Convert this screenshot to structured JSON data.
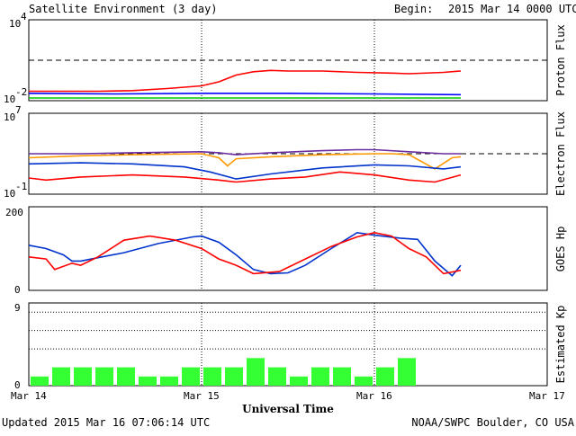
{
  "header": {
    "title": "Satellite Environment (3 day)",
    "begin_label": "Begin:",
    "begin_value": "2015 Mar 14 0000 UTC"
  },
  "footer": {
    "updated": "Updated 2015 Mar 16 07:06:14 UTC",
    "credit": "NOAA/SWPC Boulder, CO USA"
  },
  "xaxis": {
    "title": "Universal Time",
    "ticks": [
      "Mar 14",
      "Mar 15",
      "Mar 16",
      "Mar 17"
    ],
    "range_days": [
      0,
      3
    ]
  },
  "chart_data": [
    {
      "type": "line",
      "ylabel": "Proton Flux",
      "yscale": "log",
      "ylim_exp": [
        -2,
        4
      ],
      "yticks": [
        {
          "base": "10",
          "exp": "4"
        },
        {
          "base": "10",
          "exp": "-2"
        }
      ],
      "threshold_exp": 1,
      "series": [
        {
          "color": "#ff0000",
          "x": [
            0,
            0.2,
            0.4,
            0.6,
            0.8,
            1.0,
            1.1,
            1.2,
            1.3,
            1.4,
            1.5,
            1.7,
            1.9,
            2.1,
            2.2,
            2.4,
            2.5
          ],
          "y_exp": [
            -1.3,
            -1.3,
            -1.3,
            -1.25,
            -1.1,
            -0.9,
            -0.6,
            -0.1,
            0.15,
            0.25,
            0.2,
            0.2,
            0.1,
            0.05,
            0.0,
            0.1,
            0.2
          ]
        },
        {
          "color": "#0000ff",
          "x": [
            0,
            0.5,
            1.0,
            1.5,
            2.0,
            2.5
          ],
          "y_exp": [
            -1.45,
            -1.5,
            -1.45,
            -1.45,
            -1.5,
            -1.55
          ]
        },
        {
          "color": "#00cc00",
          "x": [
            0,
            0.5,
            1.0,
            1.5,
            2.0,
            2.5
          ],
          "y_exp": [
            -1.8,
            -1.8,
            -1.8,
            -1.8,
            -1.8,
            -1.8
          ]
        }
      ]
    },
    {
      "type": "line",
      "ylabel": "Electron Flux",
      "yscale": "log",
      "ylim_exp": [
        -1,
        7
      ],
      "yticks": [
        {
          "base": "10",
          "exp": "7"
        },
        {
          "base": "10",
          "exp": "-1"
        }
      ],
      "threshold_exp": 3,
      "series": [
        {
          "color": "#6a2ca0",
          "x": [
            0,
            0.3,
            0.6,
            1.0,
            1.1,
            1.2,
            1.4,
            1.7,
            1.9,
            2.0,
            2.2,
            2.4,
            2.5
          ],
          "y_exp": [
            3.0,
            3.0,
            3.1,
            3.2,
            3.1,
            2.9,
            3.1,
            3.3,
            3.4,
            3.4,
            3.2,
            3.0,
            3.0
          ]
        },
        {
          "color": "#ff9900",
          "x": [
            0,
            0.3,
            0.6,
            1.0,
            1.1,
            1.15,
            1.2,
            1.4,
            1.7,
            2.0,
            2.1,
            2.2,
            2.35,
            2.45,
            2.5
          ],
          "y_exp": [
            2.6,
            2.8,
            2.9,
            3.0,
            2.6,
            1.8,
            2.5,
            2.7,
            2.9,
            3.0,
            3.0,
            2.9,
            1.5,
            2.6,
            2.7
          ]
        },
        {
          "color": "#0033cc",
          "x": [
            0,
            0.3,
            0.6,
            0.9,
            1.05,
            1.2,
            1.4,
            1.7,
            2.0,
            2.2,
            2.4,
            2.5
          ],
          "y_exp": [
            2.0,
            2.1,
            2.0,
            1.7,
            1.2,
            0.5,
            1.0,
            1.6,
            1.9,
            1.8,
            1.5,
            1.7
          ]
        },
        {
          "color": "#ff0000",
          "x": [
            0,
            0.1,
            0.3,
            0.6,
            0.9,
            1.1,
            1.2,
            1.4,
            1.6,
            1.8,
            2.0,
            2.2,
            2.35,
            2.5
          ],
          "y_exp": [
            0.6,
            0.4,
            0.7,
            0.9,
            0.7,
            0.4,
            0.2,
            0.5,
            0.7,
            1.2,
            0.9,
            0.4,
            0.2,
            0.9
          ]
        }
      ]
    },
    {
      "type": "line",
      "ylabel": "GOES Hp",
      "yscale": "linear",
      "ylim": [
        0,
        200
      ],
      "yticks": [
        0,
        200
      ],
      "series": [
        {
          "color": "#0033cc",
          "x": [
            0,
            0.1,
            0.2,
            0.25,
            0.3,
            0.4,
            0.55,
            0.75,
            0.95,
            1.0,
            1.1,
            1.2,
            1.3,
            1.4,
            1.5,
            1.6,
            1.75,
            1.9,
            2.0,
            2.15,
            2.25,
            2.35,
            2.45,
            2.5
          ],
          "y": [
            108,
            100,
            85,
            70,
            70,
            78,
            90,
            112,
            128,
            130,
            115,
            85,
            50,
            40,
            42,
            60,
            100,
            138,
            132,
            125,
            122,
            70,
            35,
            60
          ]
        },
        {
          "color": "#ff0000",
          "x": [
            0,
            0.1,
            0.15,
            0.25,
            0.3,
            0.4,
            0.55,
            0.7,
            0.85,
            1.0,
            1.1,
            1.2,
            1.3,
            1.45,
            1.6,
            1.75,
            1.9,
            2.0,
            2.1,
            2.2,
            2.3,
            2.4,
            2.5
          ],
          "y": [
            80,
            75,
            50,
            65,
            60,
            80,
            120,
            130,
            120,
            100,
            75,
            60,
            40,
            45,
            75,
            105,
            128,
            138,
            130,
            100,
            80,
            40,
            48
          ]
        }
      ]
    },
    {
      "type": "bar",
      "ylabel": "Estimated Kp",
      "ylim": [
        0,
        9
      ],
      "yticks": [
        0,
        9
      ],
      "gridlines": [
        4,
        6,
        8,
        9
      ],
      "bar_width_hours": 3,
      "color": "#33ff33",
      "values": [
        1,
        2,
        2,
        2,
        2,
        1,
        1,
        2,
        2,
        2,
        3,
        2,
        1,
        2,
        2,
        1,
        2,
        3
      ]
    }
  ]
}
